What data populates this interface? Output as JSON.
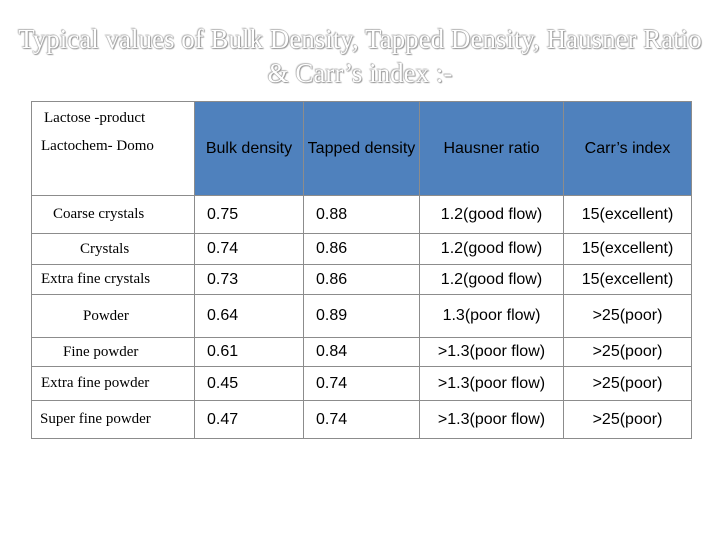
{
  "title": {
    "line1": "Typical values of  Bulk Density, Tapped Density, Hausner  Ratio",
    "line2": "&  Carr’s index :-"
  },
  "table": {
    "header": {
      "product_line1": "Lactose -product",
      "product_line2": "Lactochem- Domo",
      "bulk": "Bulk density",
      "tapped": "Tapped density",
      "hausner": "Hausner ratio",
      "carr": "Carr’s index"
    },
    "rows": [
      {
        "product": "Coarse crystals",
        "bulk": "0.75",
        "tapped": "0.88",
        "hausner": "1.2(good flow)",
        "carr": "15(excellent)"
      },
      {
        "product": "Crystals",
        "bulk": "0.74",
        "tapped": "0.86",
        "hausner": "1.2(good flow)",
        "carr": "15(excellent)"
      },
      {
        "product": "Extra fine crystals",
        "bulk": "0.73",
        "tapped": "0.86",
        "hausner": "1.2(good flow)",
        "carr": "15(excellent)"
      },
      {
        "product": "Powder",
        "bulk": "0.64",
        "tapped": "0.89",
        "hausner": "1.3(poor flow)",
        "carr": ">25(poor)"
      },
      {
        "product": "Fine powder",
        "bulk": "0.61",
        "tapped": "0.84",
        "hausner": ">1.3(poor flow)",
        "carr": ">25(poor)"
      },
      {
        "product": "Extra fine powder",
        "bulk": "0.45",
        "tapped": "0.74",
        "hausner": ">1.3(poor flow)",
        "carr": ">25(poor)"
      },
      {
        "product": "Super fine powder",
        "bulk": "0.47",
        "tapped": "0.74",
        "hausner": ">1.3(poor flow)",
        "carr": ">25(poor)"
      }
    ]
  }
}
